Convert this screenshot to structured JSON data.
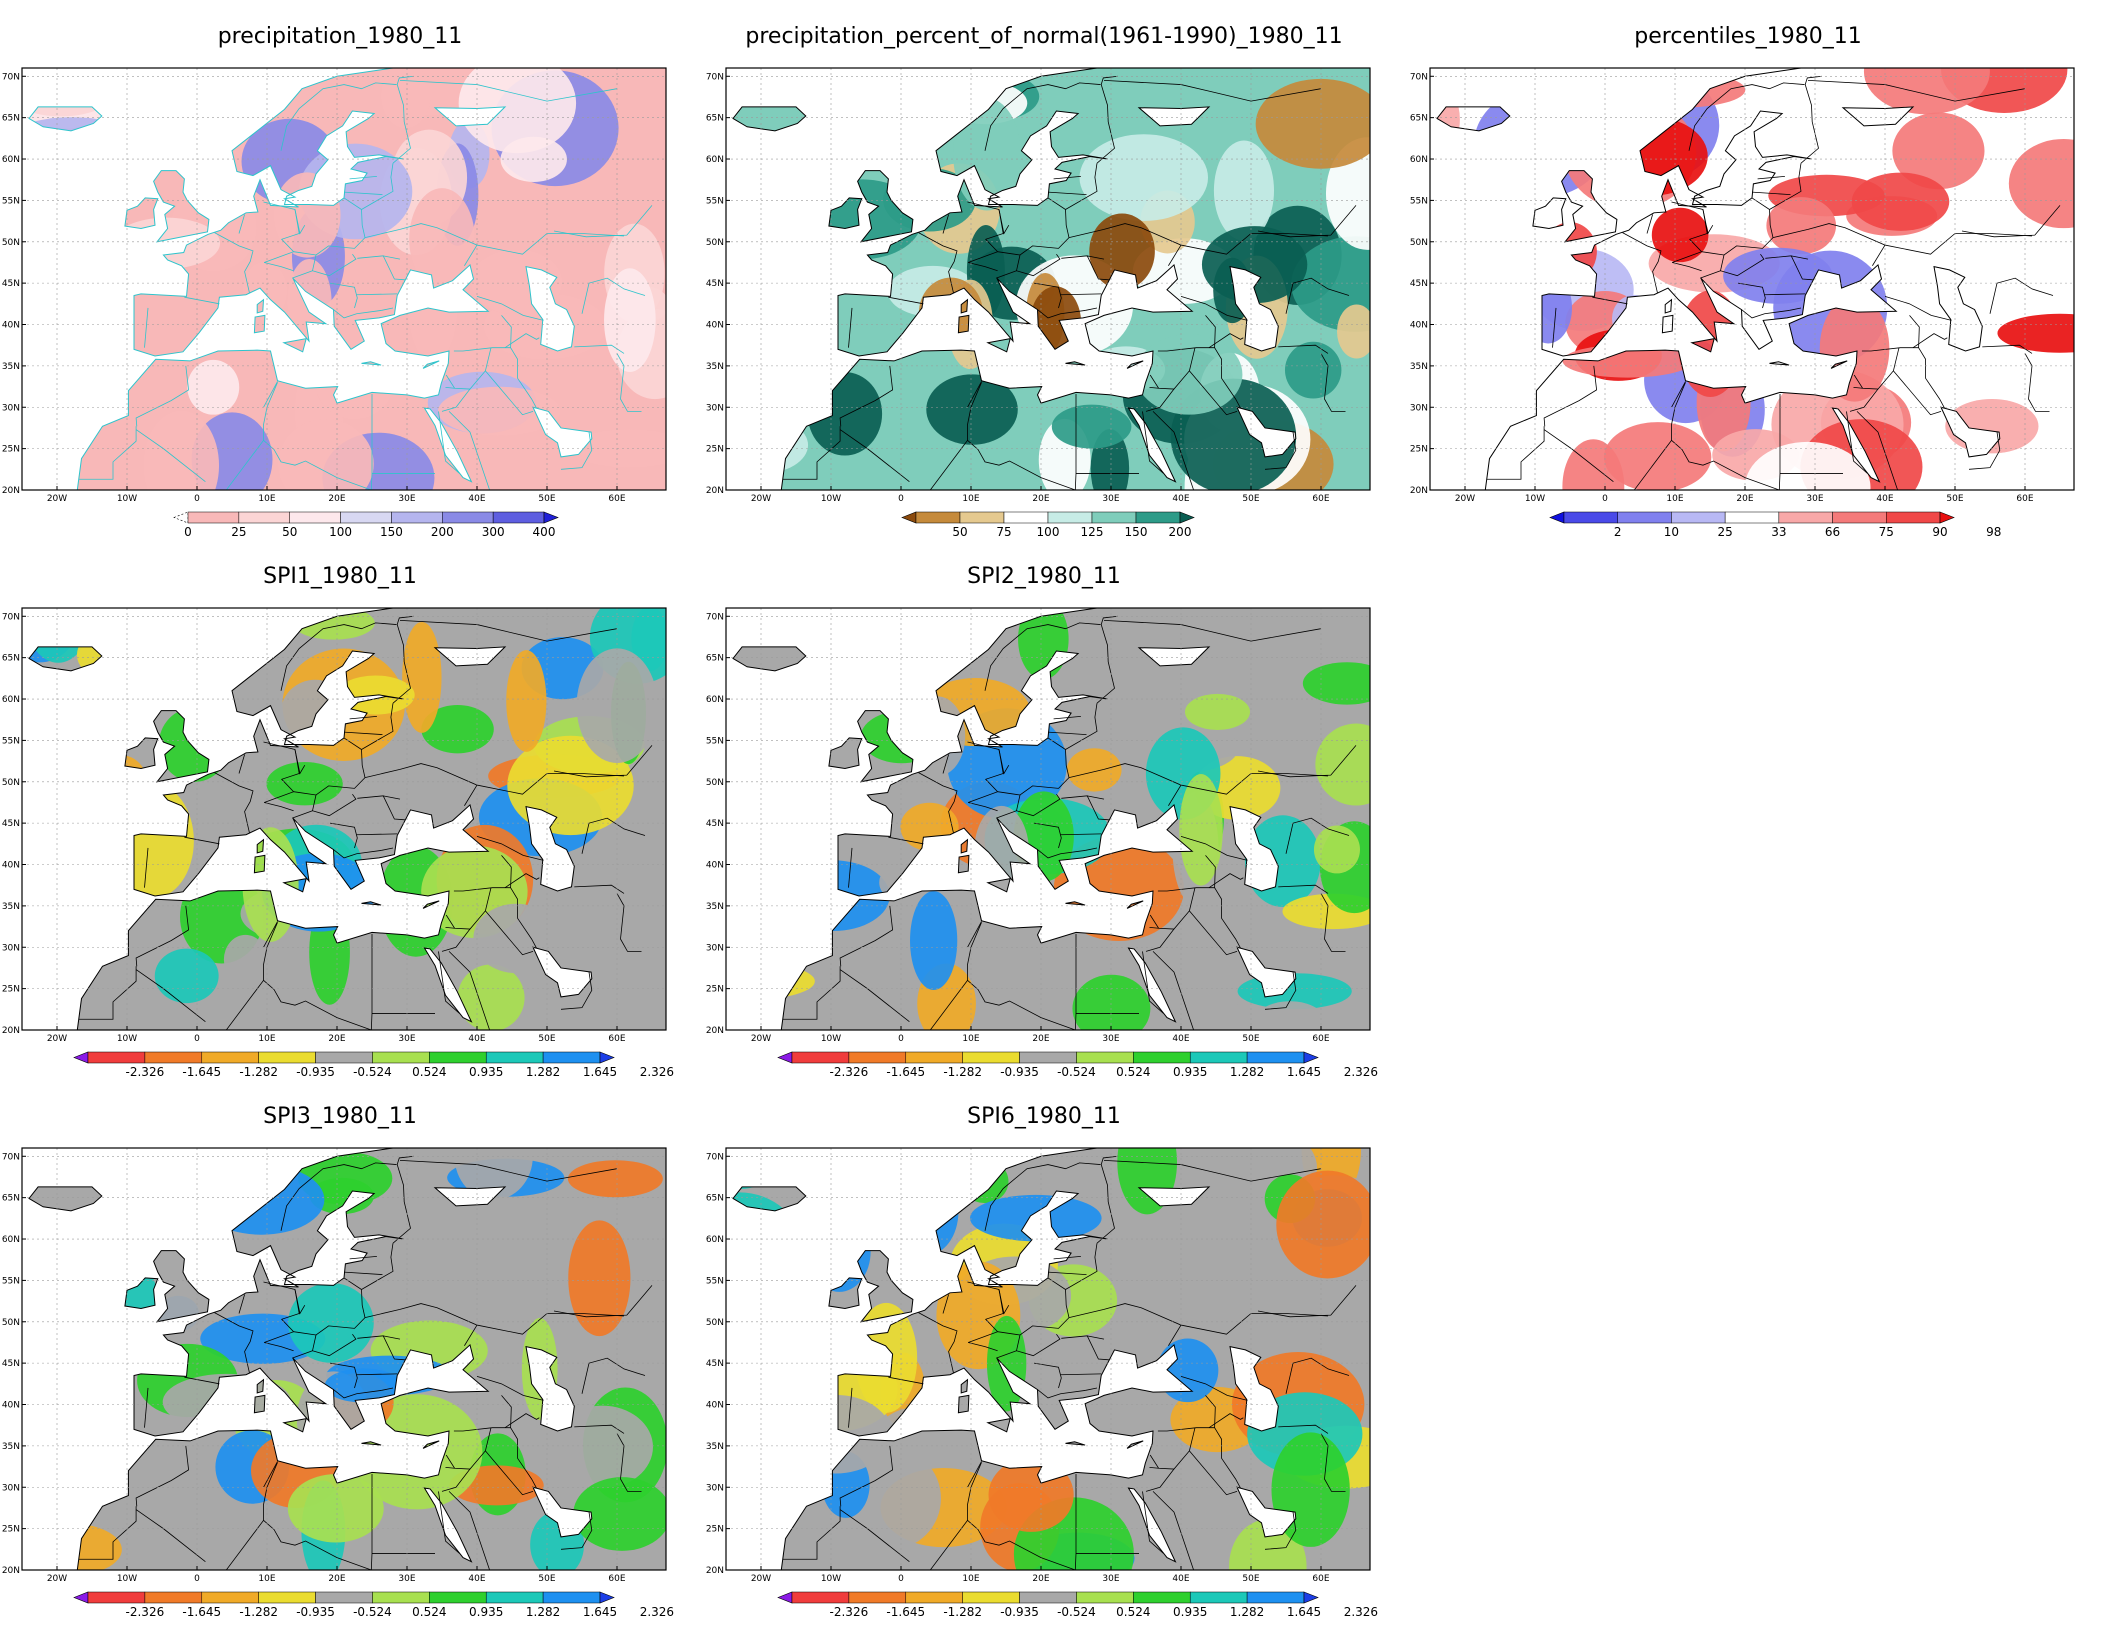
{
  "lat_labels": [
    "70N",
    "65N",
    "60N",
    "55N",
    "50N",
    "45N",
    "40N",
    "35N",
    "30N",
    "25N",
    "20N"
  ],
  "lon_labels": [
    "20W",
    "10W",
    "0",
    "10E",
    "20E",
    "30E",
    "40E",
    "50E",
    "60E"
  ],
  "colors": {
    "land_outline": "#000000",
    "cyan_outline": "#2ec4cc",
    "grid": "#9a9a9a",
    "ocean": "#ffffff"
  },
  "panels": [
    {
      "id": "precip",
      "title": "precipitation_1980_11",
      "type": "precip",
      "colorbar": {
        "labels": [
          "0",
          "25",
          "50",
          "100",
          "150",
          "200",
          "300",
          "400"
        ],
        "colors": [
          "#ffffff",
          "#f8b8b8",
          "#fbd5d5",
          "#fde8ec",
          "#d8d8f2",
          "#b5b5ee",
          "#8a8ae6",
          "#5e5ee0",
          "#2020d8"
        ]
      }
    },
    {
      "id": "pct",
      "title": "precipitation_percent_of_normal(1961-1990)_1980_11",
      "type": "pct",
      "colorbar": {
        "labels": [
          "50",
          "75",
          "100",
          "125",
          "150",
          "200"
        ],
        "colors": [
          "#8b4a0c",
          "#c58a3b",
          "#e5c98f",
          "#ffffff",
          "#c7ece6",
          "#7fcdbb",
          "#2d9b88",
          "#0a5e52"
        ]
      }
    },
    {
      "id": "perc",
      "title": "percentiles_1980_11",
      "type": "perc",
      "colorbar": {
        "labels": [
          "2",
          "10",
          "25",
          "33",
          "66",
          "75",
          "90",
          "98"
        ],
        "colors": [
          "#1010e0",
          "#4a4ae8",
          "#8080ee",
          "#b8b8f4",
          "#ffffff",
          "#f8a8a8",
          "#f47a7a",
          "#f04848",
          "#e81010"
        ]
      }
    },
    {
      "id": "spi1",
      "title": "SPI1_1980_11",
      "type": "spi",
      "colorbar": {
        "labels": [
          "-2.326",
          "-1.645",
          "-1.282",
          "-0.935",
          "-0.524",
          "0.524",
          "0.935",
          "1.282",
          "1.645",
          "2.326"
        ],
        "colors": [
          "#8a1ae6",
          "#f03c3c",
          "#f07a28",
          "#f0aa28",
          "#eadc30",
          "#a8a8a8",
          "#a8e050",
          "#2ed02e",
          "#1cc8b8",
          "#1e90f0",
          "#1c3ee6"
        ]
      }
    },
    {
      "id": "spi2",
      "title": "SPI2_1980_11",
      "type": "spi",
      "colorbar": {
        "labels": [
          "-2.326",
          "-1.645",
          "-1.282",
          "-0.935",
          "-0.524",
          "0.524",
          "0.935",
          "1.282",
          "1.645",
          "2.326"
        ],
        "colors": [
          "#8a1ae6",
          "#f03c3c",
          "#f07a28",
          "#f0aa28",
          "#eadc30",
          "#a8a8a8",
          "#a8e050",
          "#2ed02e",
          "#1cc8b8",
          "#1e90f0",
          "#1c3ee6"
        ]
      }
    },
    {
      "id": "spi3",
      "title": "SPI3_1980_11",
      "type": "spi",
      "colorbar": {
        "labels": [
          "-2.326",
          "-1.645",
          "-1.282",
          "-0.935",
          "-0.524",
          "0.524",
          "0.935",
          "1.282",
          "1.645",
          "2.326"
        ],
        "colors": [
          "#8a1ae6",
          "#f03c3c",
          "#f07a28",
          "#f0aa28",
          "#eadc30",
          "#a8a8a8",
          "#a8e050",
          "#2ed02e",
          "#1cc8b8",
          "#1e90f0",
          "#1c3ee6"
        ]
      }
    },
    {
      "id": "spi6",
      "title": "SPI6_1980_11",
      "type": "spi",
      "colorbar": {
        "labels": [
          "-2.326",
          "-1.645",
          "-1.282",
          "-0.935",
          "-0.524",
          "0.524",
          "0.935",
          "1.282",
          "1.645",
          "2.326"
        ],
        "colors": [
          "#8a1ae6",
          "#f03c3c",
          "#f07a28",
          "#f0aa28",
          "#eadc30",
          "#a8a8a8",
          "#a8e050",
          "#2ed02e",
          "#1cc8b8",
          "#1e90f0",
          "#1c3ee6"
        ]
      }
    }
  ]
}
